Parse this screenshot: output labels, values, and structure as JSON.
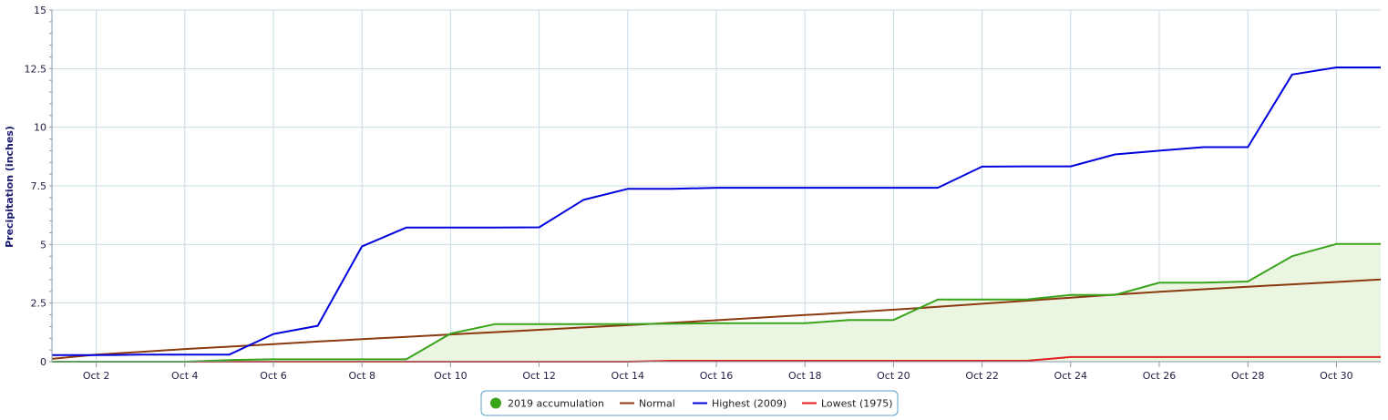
{
  "chart_data": {
    "type": "line",
    "ylabel": "Precipitation (inches)",
    "ylim": [
      0,
      15
    ],
    "yticks": [
      "0",
      "2.5",
      "5",
      "7.5",
      "10",
      "12.5",
      "15"
    ],
    "xlim": [
      1,
      31
    ],
    "xtick_labels": [
      "Oct 2",
      "Oct 4",
      "Oct 6",
      "Oct 8",
      "Oct 10",
      "Oct 12",
      "Oct 14",
      "Oct 16",
      "Oct 18",
      "Oct 20",
      "Oct 22",
      "Oct 24",
      "Oct 26",
      "Oct 28",
      "Oct 30"
    ],
    "grid": true,
    "legend_position": "bottom-center",
    "series": [
      {
        "name": "2019 accumulation",
        "color": "#3aa31c",
        "fill": "#eaf5e2",
        "x": [
          1,
          2,
          3,
          4,
          5,
          6,
          7,
          8,
          9,
          10,
          11,
          12,
          13,
          14,
          15,
          16,
          17,
          18,
          19,
          20,
          21,
          22,
          23,
          24,
          25,
          26,
          27,
          28,
          29,
          30,
          31
        ],
        "y": [
          0,
          0,
          0,
          0,
          0.07,
          0.1,
          0.1,
          0.1,
          0.1,
          1.2,
          1.6,
          1.6,
          1.6,
          1.6,
          1.62,
          1.64,
          1.64,
          1.64,
          1.78,
          1.78,
          2.65,
          2.65,
          2.65,
          2.85,
          2.85,
          3.37,
          3.37,
          3.42,
          4.5,
          5.02,
          5.02
        ]
      },
      {
        "name": "Normal",
        "color": "#8b3a0f",
        "x": [
          1,
          2,
          3,
          4,
          5,
          6,
          7,
          8,
          9,
          10,
          11,
          12,
          13,
          14,
          15,
          16,
          17,
          18,
          19,
          20,
          21,
          22,
          23,
          24,
          25,
          26,
          27,
          28,
          29,
          30,
          31
        ],
        "y": [
          0.12,
          0.3,
          0.42,
          0.54,
          0.64,
          0.75,
          0.86,
          0.96,
          1.06,
          1.16,
          1.26,
          1.36,
          1.46,
          1.56,
          1.66,
          1.77,
          1.88,
          1.99,
          2.1,
          2.22,
          2.34,
          2.47,
          2.6,
          2.73,
          2.86,
          2.98,
          3.09,
          3.2,
          3.3,
          3.4,
          3.51
        ]
      },
      {
        "name": "Highest (2009)",
        "color": "#0000dd",
        "x": [
          1,
          2,
          3,
          4,
          5,
          6,
          7,
          8,
          9,
          10,
          11,
          12,
          13,
          14,
          15,
          16,
          17,
          18,
          19,
          20,
          21,
          22,
          23,
          24,
          25,
          26,
          27,
          28,
          29,
          30,
          31
        ],
        "y": [
          0.28,
          0.28,
          0.3,
          0.3,
          0.3,
          1.18,
          1.53,
          4.92,
          5.72,
          5.72,
          5.72,
          5.73,
          6.9,
          7.37,
          7.37,
          7.42,
          7.42,
          7.42,
          7.42,
          7.42,
          7.42,
          8.32,
          8.33,
          8.33,
          8.84,
          9.0,
          9.15,
          9.15,
          12.25,
          12.55,
          12.55
        ]
      },
      {
        "name": "Lowest (1975)",
        "color": "#e0201a",
        "x": [
          1,
          2,
          3,
          4,
          5,
          6,
          7,
          8,
          9,
          10,
          11,
          12,
          13,
          14,
          15,
          16,
          17,
          18,
          19,
          20,
          21,
          22,
          23,
          24,
          25,
          26,
          27,
          28,
          29,
          30,
          31
        ],
        "y": [
          0,
          0,
          0,
          0,
          0,
          0,
          0,
          0,
          0,
          0,
          0,
          0,
          0,
          0,
          0.04,
          0.04,
          0.04,
          0.04,
          0.04,
          0.04,
          0.04,
          0.04,
          0.04,
          0.2,
          0.2,
          0.2,
          0.2,
          0.2,
          0.2,
          0.2,
          0.2
        ]
      }
    ]
  }
}
